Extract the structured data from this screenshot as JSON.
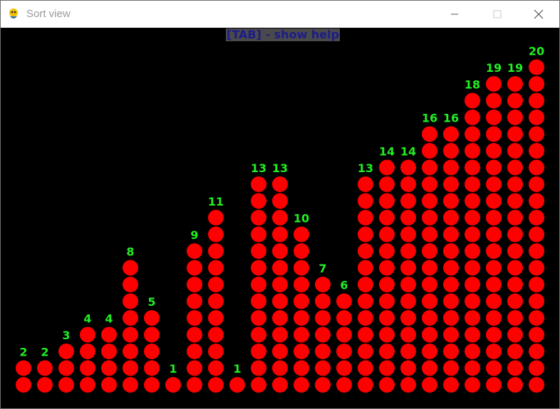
{
  "window": {
    "title": "Sort view",
    "icon": "python-snake-icon"
  },
  "help_hint": "[TAB] - show help",
  "colors": {
    "background": "#000000",
    "ball": "#ff0000",
    "label": "#22ee22",
    "hint_text": "#1c1c8a",
    "hint_bg": "#4a4a4a"
  },
  "chart_data": {
    "type": "bar",
    "values": [
      2,
      2,
      3,
      4,
      4,
      8,
      5,
      1,
      9,
      11,
      1,
      13,
      13,
      10,
      7,
      6,
      13,
      14,
      14,
      16,
      16,
      18,
      19,
      19,
      20
    ],
    "ylim": [
      0,
      20
    ]
  }
}
